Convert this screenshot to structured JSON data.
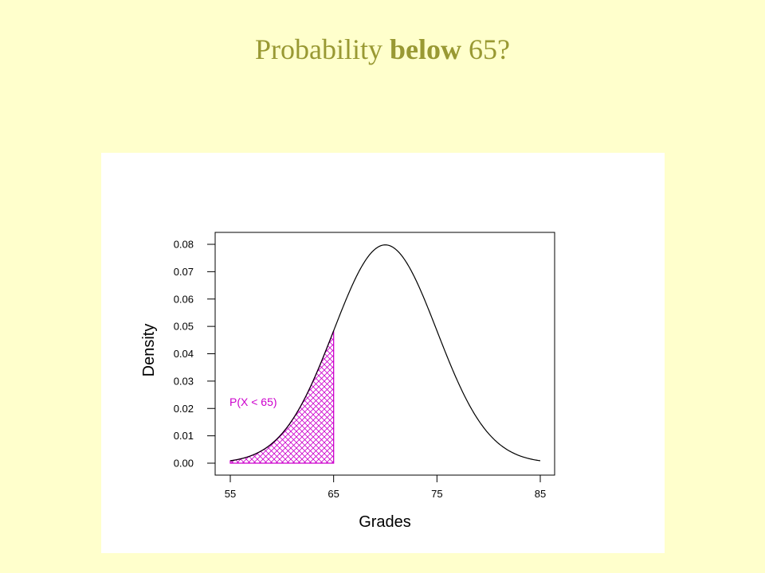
{
  "slide": {
    "title_prefix": "Probability",
    "title_bold": "below",
    "title_suffix": "65?",
    "background": "#ffffcc",
    "title_color": "#999933"
  },
  "chart_data": {
    "type": "area",
    "distribution": "normal",
    "mean": 70,
    "sd": 5,
    "xlabel": "Grades",
    "ylabel": "Density",
    "xlim": [
      55,
      85
    ],
    "ylim": [
      0,
      0.08
    ],
    "x_ticks": [
      "55",
      "65",
      "75",
      "85"
    ],
    "y_ticks": [
      "0.00",
      "0.01",
      "0.02",
      "0.03",
      "0.04",
      "0.05",
      "0.06",
      "0.07",
      "0.08"
    ],
    "shaded_region": {
      "from": 55,
      "to": 65,
      "fill": "crosshatch",
      "color": "#cc00cc"
    },
    "annotation": "P(X < 65)",
    "curve_color": "#000000",
    "grid": false
  }
}
